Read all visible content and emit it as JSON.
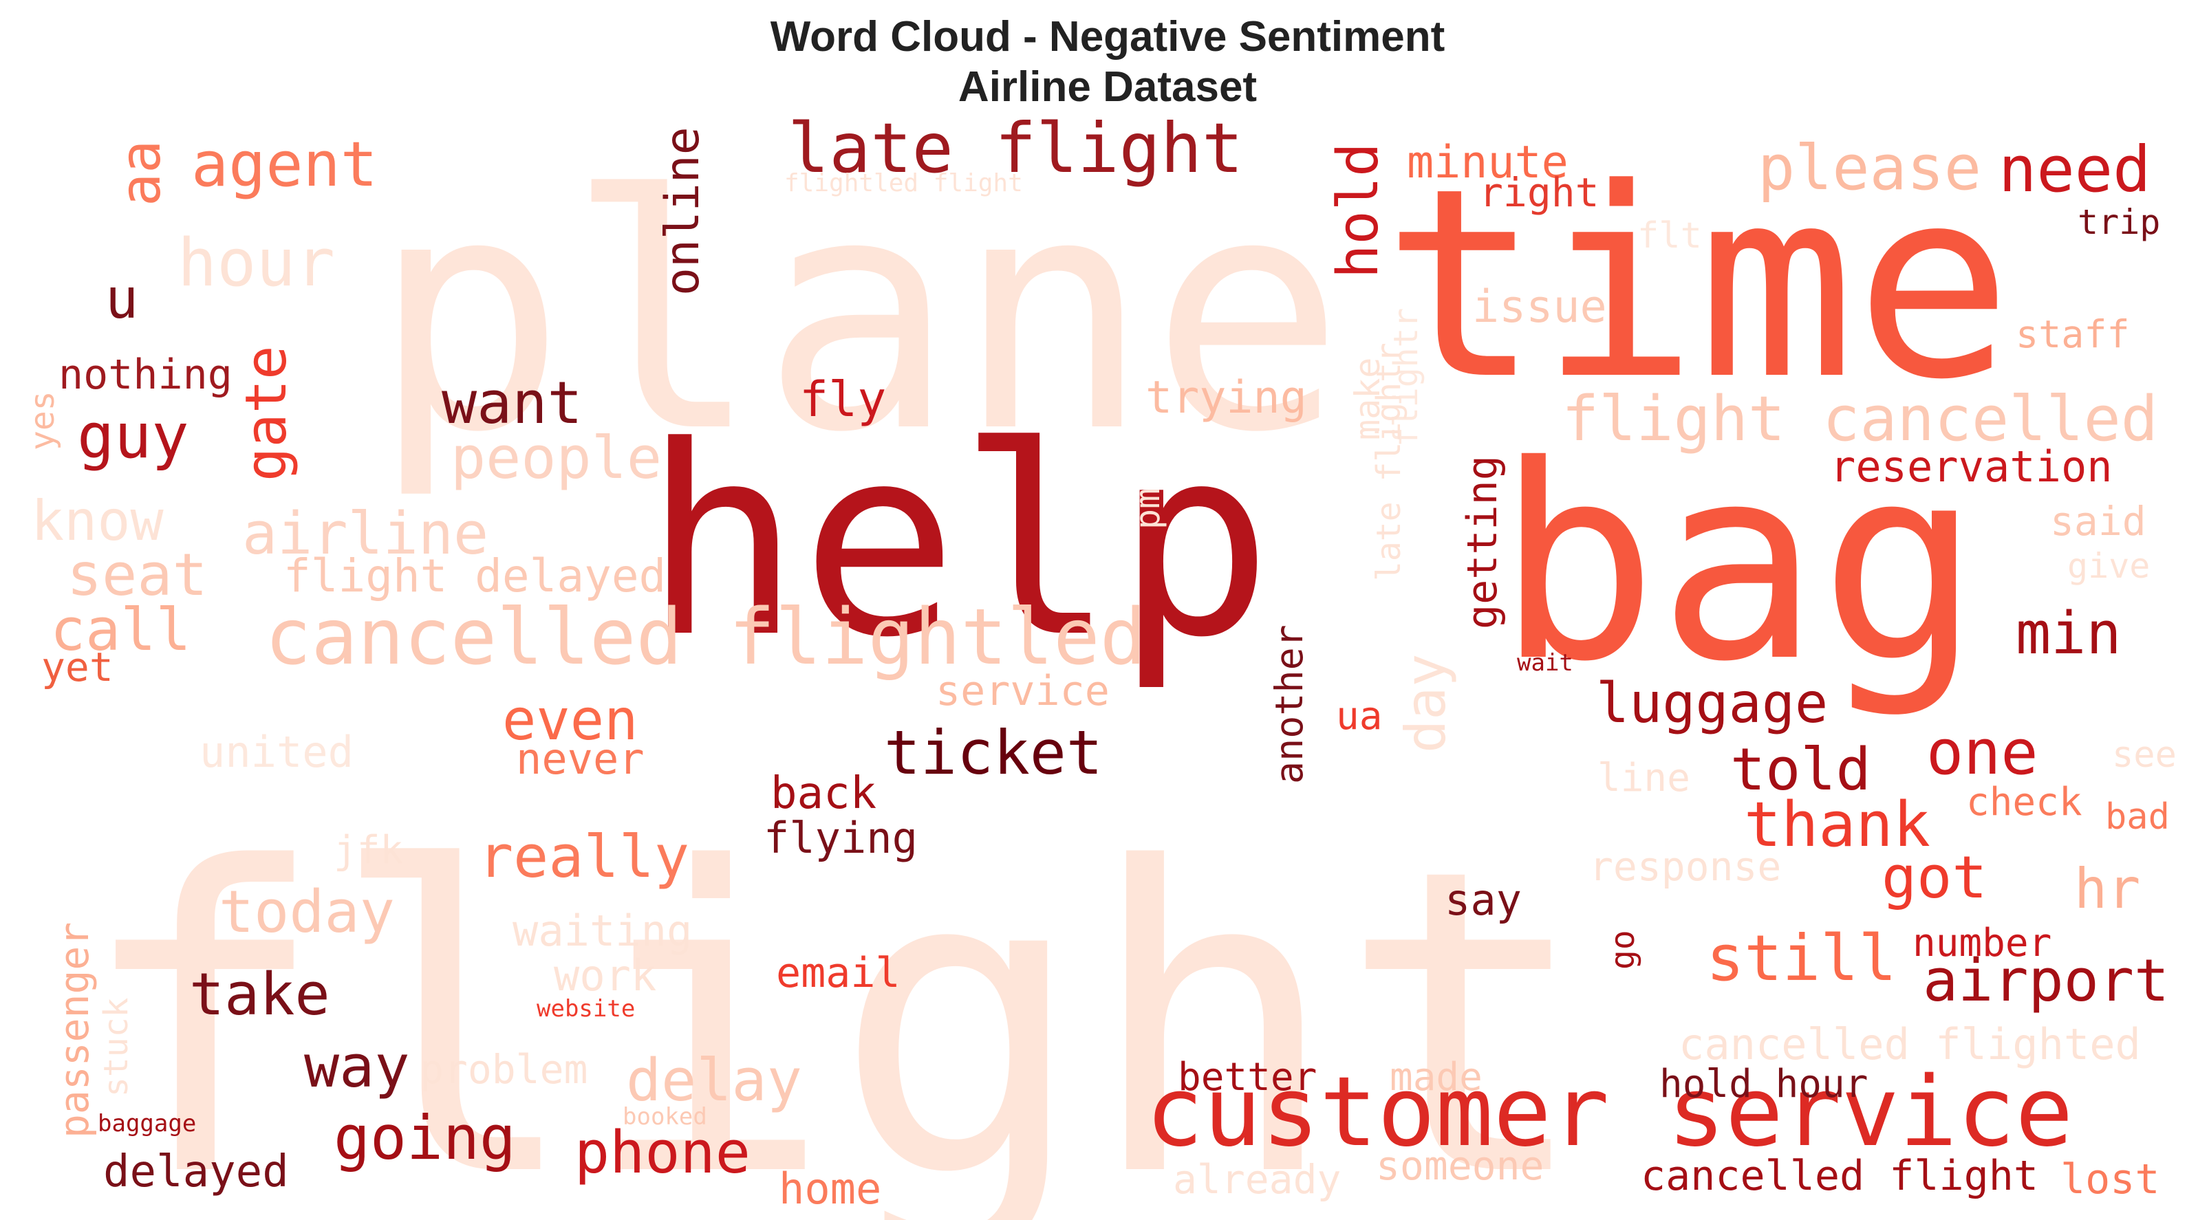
{
  "chart_data": {
    "type": "wordcloud",
    "title": "Word Cloud - Negative Sentiment",
    "subtitle": "Airline Dataset",
    "palette": [
      "#fee0d2",
      "#fcbba1",
      "#fc9272",
      "#fb6a4a",
      "#ef3b2c",
      "#cb181d",
      "#a50f15",
      "#67000d"
    ],
    "words": [
      {
        "text": "flight",
        "color": "#fee5d9",
        "weight": 1.0,
        "orientation": "horizontal"
      },
      {
        "text": "plane",
        "color": "#fee5d9",
        "weight": 0.62,
        "orientation": "horizontal"
      },
      {
        "text": "help",
        "color": "#b5141b",
        "weight": 0.6,
        "orientation": "horizontal"
      },
      {
        "text": "time",
        "color": "#f7583e",
        "weight": 0.6,
        "orientation": "horizontal"
      },
      {
        "text": "bag",
        "color": "#f7583e",
        "weight": 0.65,
        "orientation": "horizontal"
      },
      {
        "text": "customer service",
        "color": "#dd2a24",
        "weight": 0.24,
        "orientation": "horizontal"
      },
      {
        "text": "late flight",
        "color": "#9f1a1f",
        "weight": 0.17,
        "orientation": "horizontal"
      },
      {
        "text": "cancelled flightled",
        "color": "#fcc9b4",
        "weight": 0.22,
        "orientation": "horizontal"
      },
      {
        "text": "flight cancelled",
        "color": "#fcc9b4",
        "weight": 0.17,
        "orientation": "horizontal"
      },
      {
        "text": "agent",
        "color": "#fb7b5b",
        "weight": 0.17,
        "orientation": "horizontal"
      },
      {
        "text": "aa",
        "color": "#fb7b5b",
        "weight": 0.15,
        "orientation": "vertical"
      },
      {
        "text": "hour",
        "color": "#fde3d6",
        "weight": 0.18,
        "orientation": "horizontal"
      },
      {
        "text": "please",
        "color": "#fcbba1",
        "weight": 0.17,
        "orientation": "horizontal"
      },
      {
        "text": "need",
        "color": "#cb181d",
        "weight": 0.17,
        "orientation": "horizontal"
      },
      {
        "text": "minute",
        "color": "#fb6a4a",
        "weight": 0.13,
        "orientation": "horizontal"
      },
      {
        "text": "right",
        "color": "#e43b2e",
        "weight": 0.12,
        "orientation": "horizontal"
      },
      {
        "text": "hold",
        "color": "#cb181d",
        "weight": 0.16,
        "orientation": "vertical"
      },
      {
        "text": "online",
        "color": "#7a1018",
        "weight": 0.13,
        "orientation": "vertical"
      },
      {
        "text": "flightled flight",
        "color": "#fde3d6",
        "weight": 0.07,
        "orientation": "horizontal"
      },
      {
        "text": "flt",
        "color": "#fde8dd",
        "weight": 0.1,
        "orientation": "horizontal"
      },
      {
        "text": "trip",
        "color": "#7a1018",
        "weight": 0.1,
        "orientation": "horizontal"
      },
      {
        "text": "u",
        "color": "#7a1018",
        "weight": 0.14,
        "orientation": "horizontal"
      },
      {
        "text": "issue",
        "color": "#fcc9b4",
        "weight": 0.12,
        "orientation": "horizontal"
      },
      {
        "text": "staff",
        "color": "#fcb094",
        "weight": 0.1,
        "orientation": "horizontal"
      },
      {
        "text": "nothing",
        "color": "#9f1a1f",
        "weight": 0.11,
        "orientation": "horizontal"
      },
      {
        "text": "gate",
        "color": "#ef3b2c",
        "weight": 0.15,
        "orientation": "vertical"
      },
      {
        "text": "yes",
        "color": "#fcbba1",
        "weight": 0.09,
        "orientation": "vertical"
      },
      {
        "text": "guy",
        "color": "#b5141b",
        "weight": 0.16,
        "orientation": "horizontal"
      },
      {
        "text": "want",
        "color": "#7a1018",
        "weight": 0.15,
        "orientation": "horizontal"
      },
      {
        "text": "fly",
        "color": "#cb181d",
        "weight": 0.12,
        "orientation": "horizontal"
      },
      {
        "text": "trying",
        "color": "#fcbba1",
        "weight": 0.12,
        "orientation": "horizontal"
      },
      {
        "text": "make",
        "color": "#fde3d6",
        "weight": 0.1,
        "orientation": "vertical"
      },
      {
        "text": "flightr",
        "color": "#fde8dd",
        "weight": 0.09,
        "orientation": "vertical"
      },
      {
        "text": "late flightr",
        "color": "#fde3d6",
        "weight": 0.09,
        "orientation": "vertical"
      },
      {
        "text": "getting",
        "color": "#a50f15",
        "weight": 0.11,
        "orientation": "vertical"
      },
      {
        "text": "reservation",
        "color": "#cb181d",
        "weight": 0.11,
        "orientation": "horizontal"
      },
      {
        "text": "people",
        "color": "#fcd3c2",
        "weight": 0.15,
        "orientation": "horizontal"
      },
      {
        "text": "know",
        "color": "#fde3d6",
        "weight": 0.15,
        "orientation": "horizontal"
      },
      {
        "text": "airline",
        "color": "#fcd3c2",
        "weight": 0.15,
        "orientation": "horizontal"
      },
      {
        "text": "pm",
        "color": "#fde3d6",
        "weight": 0.1,
        "orientation": "vertical"
      },
      {
        "text": "said",
        "color": "#fcc9b4",
        "weight": 0.11,
        "orientation": "horizontal"
      },
      {
        "text": "give",
        "color": "#fde3d6",
        "weight": 0.09,
        "orientation": "horizontal"
      },
      {
        "text": "seat",
        "color": "#fcc9b4",
        "weight": 0.15,
        "orientation": "horizontal"
      },
      {
        "text": "flight delayed",
        "color": "#fcc9b4",
        "weight": 0.12,
        "orientation": "horizontal"
      },
      {
        "text": "call",
        "color": "#fcb094",
        "weight": 0.16,
        "orientation": "horizontal"
      },
      {
        "text": "min",
        "color": "#a50f15",
        "weight": 0.15,
        "orientation": "horizontal"
      },
      {
        "text": "yet",
        "color": "#f06040",
        "weight": 0.1,
        "orientation": "horizontal"
      },
      {
        "text": "another",
        "color": "#7a1018",
        "weight": 0.1,
        "orientation": "vertical"
      },
      {
        "text": "day",
        "color": "#fde3d6",
        "weight": 0.15,
        "orientation": "vertical"
      },
      {
        "text": "wait",
        "color": "#a50f15",
        "weight": 0.06,
        "orientation": "horizontal"
      },
      {
        "text": "service",
        "color": "#fcbba1",
        "weight": 0.11,
        "orientation": "horizontal"
      },
      {
        "text": "luggage",
        "color": "#a50f15",
        "weight": 0.14,
        "orientation": "horizontal"
      },
      {
        "text": "ua",
        "color": "#ef3b2c",
        "weight": 0.1,
        "orientation": "horizontal"
      },
      {
        "text": "even",
        "color": "#fb6a4a",
        "weight": 0.14,
        "orientation": "horizontal"
      },
      {
        "text": "ticket",
        "color": "#67000d",
        "weight": 0.16,
        "orientation": "horizontal"
      },
      {
        "text": "one",
        "color": "#cb181d",
        "weight": 0.16,
        "orientation": "horizontal"
      },
      {
        "text": "told",
        "color": "#a50f15",
        "weight": 0.16,
        "orientation": "horizontal"
      },
      {
        "text": "united",
        "color": "#fde8dd",
        "weight": 0.12,
        "orientation": "horizontal"
      },
      {
        "text": "never",
        "color": "#fb7b5b",
        "weight": 0.11,
        "orientation": "horizontal"
      },
      {
        "text": "line",
        "color": "#fde3d6",
        "weight": 0.12,
        "orientation": "horizontal"
      },
      {
        "text": "see",
        "color": "#fde3d6",
        "weight": 0.1,
        "orientation": "horizontal"
      },
      {
        "text": "back",
        "color": "#a50f15",
        "weight": 0.12,
        "orientation": "horizontal"
      },
      {
        "text": "check",
        "color": "#fb7b5b",
        "weight": 0.11,
        "orientation": "horizontal"
      },
      {
        "text": "thank",
        "color": "#ef3b2c",
        "weight": 0.17,
        "orientation": "horizontal"
      },
      {
        "text": "bad",
        "color": "#fb7b5b",
        "weight": 0.1,
        "orientation": "horizontal"
      },
      {
        "text": "flying",
        "color": "#7a1018",
        "weight": 0.12,
        "orientation": "horizontal"
      },
      {
        "text": "jfk",
        "color": "#fde3d6",
        "weight": 0.11,
        "orientation": "horizontal"
      },
      {
        "text": "really",
        "color": "#fb7b5b",
        "weight": 0.16,
        "orientation": "horizontal"
      },
      {
        "text": "response",
        "color": "#fde3d6",
        "weight": 0.11,
        "orientation": "horizontal"
      },
      {
        "text": "got",
        "color": "#ef3b2c",
        "weight": 0.16,
        "orientation": "horizontal"
      },
      {
        "text": "hr",
        "color": "#fcb094",
        "weight": 0.15,
        "orientation": "horizontal"
      },
      {
        "text": "today",
        "color": "#fcc9b4",
        "weight": 0.16,
        "orientation": "horizontal"
      },
      {
        "text": "say",
        "color": "#7a1018",
        "weight": 0.12,
        "orientation": "horizontal"
      },
      {
        "text": "waiting",
        "color": "#fde3d6",
        "weight": 0.12,
        "orientation": "horizontal"
      },
      {
        "text": "go",
        "color": "#a50f15",
        "weight": 0.1,
        "orientation": "vertical"
      },
      {
        "text": "still",
        "color": "#fb6a4a",
        "weight": 0.17,
        "orientation": "horizontal"
      },
      {
        "text": "number",
        "color": "#cb181d",
        "weight": 0.1,
        "orientation": "horizontal"
      },
      {
        "text": "airport",
        "color": "#a50f15",
        "weight": 0.16,
        "orientation": "horizontal"
      },
      {
        "text": "work",
        "color": "#fde3d6",
        "weight": 0.13,
        "orientation": "horizontal"
      },
      {
        "text": "email",
        "color": "#ef3b2c",
        "weight": 0.11,
        "orientation": "horizontal"
      },
      {
        "text": "take",
        "color": "#7a1018",
        "weight": 0.16,
        "orientation": "horizontal"
      },
      {
        "text": "passenger",
        "color": "#fcb094",
        "weight": 0.11,
        "orientation": "vertical"
      },
      {
        "text": "website",
        "color": "#ef3b2c",
        "weight": 0.06,
        "orientation": "horizontal"
      },
      {
        "text": "stuck",
        "color": "#fde3d6",
        "weight": 0.1,
        "orientation": "vertical"
      },
      {
        "text": "cancelled flighted",
        "color": "#fde3d6",
        "weight": 0.13,
        "orientation": "horizontal"
      },
      {
        "text": "way",
        "color": "#7a1018",
        "weight": 0.17,
        "orientation": "horizontal"
      },
      {
        "text": "problem",
        "color": "#fde3d6",
        "weight": 0.11,
        "orientation": "horizontal"
      },
      {
        "text": "delay",
        "color": "#fcc9b4",
        "weight": 0.16,
        "orientation": "horizontal"
      },
      {
        "text": "better",
        "color": "#a50f15",
        "weight": 0.11,
        "orientation": "horizontal"
      },
      {
        "text": "made",
        "color": "#fcc9b4",
        "weight": 0.11,
        "orientation": "horizontal"
      },
      {
        "text": "hold hour",
        "color": "#7a1018",
        "weight": 0.11,
        "orientation": "horizontal"
      },
      {
        "text": "baggage",
        "color": "#a50f15",
        "weight": 0.07,
        "orientation": "horizontal"
      },
      {
        "text": "booked",
        "color": "#fcc9b4",
        "weight": 0.06,
        "orientation": "horizontal"
      },
      {
        "text": "going",
        "color": "#a50f15",
        "weight": 0.17,
        "orientation": "horizontal"
      },
      {
        "text": "phone",
        "color": "#cb181d",
        "weight": 0.17,
        "orientation": "horizontal"
      },
      {
        "text": "delayed",
        "color": "#7a1018",
        "weight": 0.12,
        "orientation": "horizontal"
      },
      {
        "text": "home",
        "color": "#fb7b5b",
        "weight": 0.12,
        "orientation": "horizontal"
      },
      {
        "text": "already",
        "color": "#fde3d6",
        "weight": 0.12,
        "orientation": "horizontal"
      },
      {
        "text": "someone",
        "color": "#fcc9b4",
        "weight": 0.11,
        "orientation": "horizontal"
      },
      {
        "text": "cancelled flight",
        "color": "#a50f15",
        "weight": 0.12,
        "orientation": "horizontal"
      },
      {
        "text": "lost",
        "color": "#fb7b5b",
        "weight": 0.12,
        "orientation": "horizontal"
      }
    ]
  }
}
